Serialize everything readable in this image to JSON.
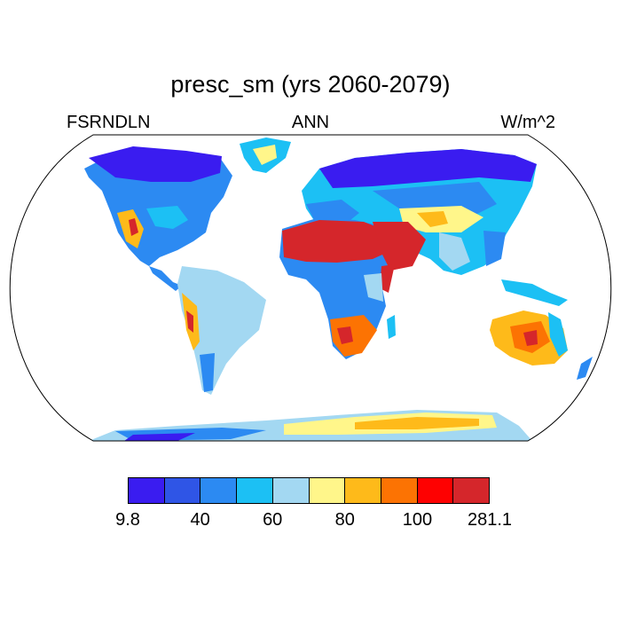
{
  "title": "presc_sm (yrs 2060-2079)",
  "left_label": "FSRNDLN",
  "center_label": "ANN",
  "right_label": "W/m^2",
  "colorbar": {
    "colors": [
      "#3a1cf0",
      "#2f55e6",
      "#2c8af2",
      "#1cc0f4",
      "#a3d8f2",
      "#fff68a",
      "#feba1a",
      "#fc7303",
      "#fe0101",
      "#d5262b"
    ],
    "labels": [
      "9.8",
      "40",
      "60",
      "80",
      "100",
      "281.1"
    ],
    "label_box_indices": [
      0,
      2,
      4,
      6,
      8,
      10
    ]
  }
}
